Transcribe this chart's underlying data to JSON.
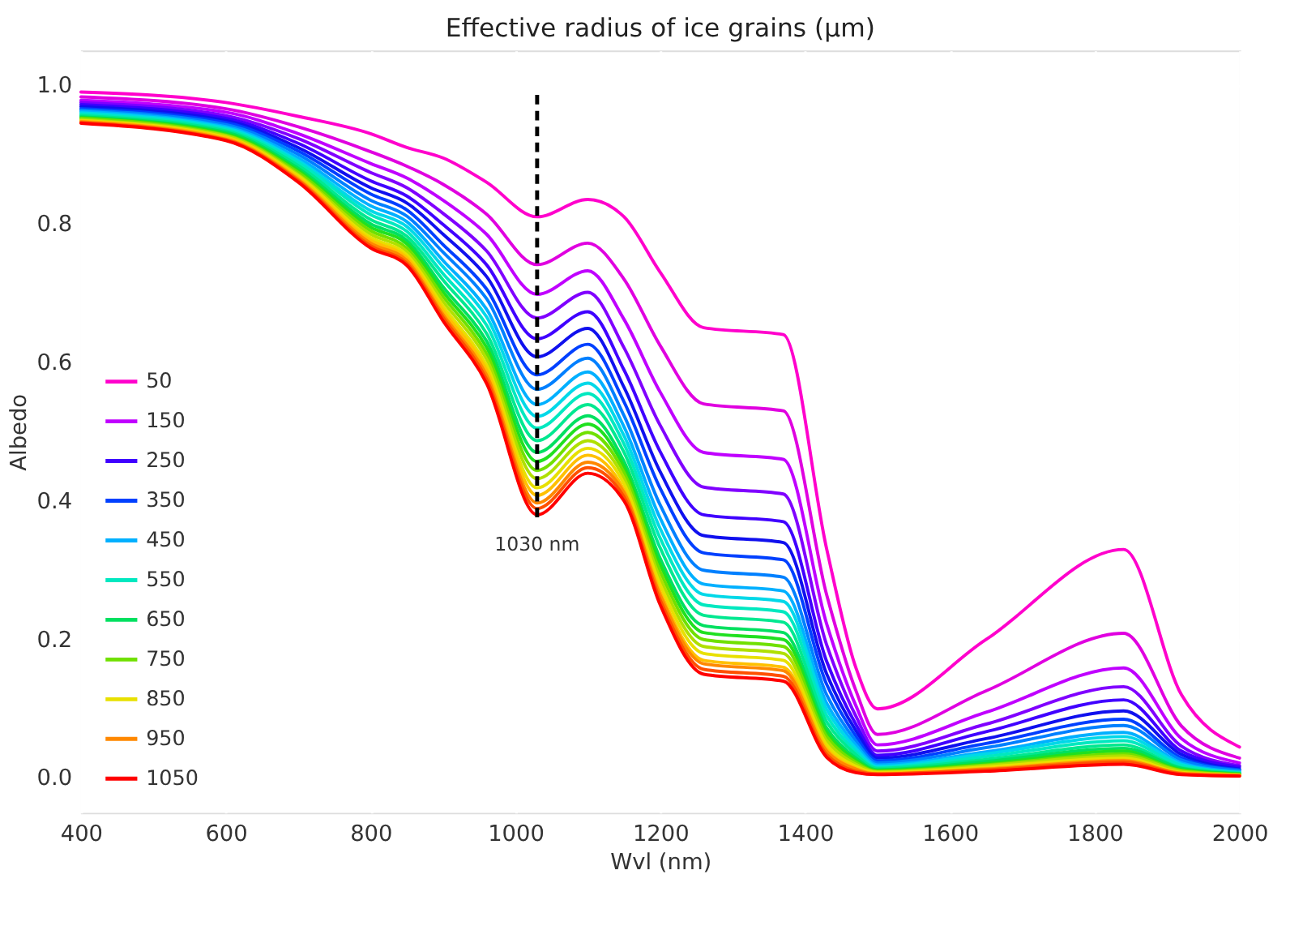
{
  "chart_data": {
    "type": "line",
    "title": "Effective radius of ice grains (µm)",
    "xlabel": "Wvl (nm)",
    "ylabel": "Albedo",
    "x": [
      400,
      600,
      700,
      800,
      850,
      900,
      960,
      1030,
      1100,
      1150,
      1200,
      1260,
      1370,
      1430,
      1470,
      1500,
      1650,
      1840,
      1920,
      2000
    ],
    "xlim": [
      400,
      2000
    ],
    "xticks": [
      400,
      600,
      800,
      1000,
      1200,
      1400,
      1600,
      1800,
      2000
    ],
    "ylim": [
      -0.05,
      1.05
    ],
    "yticks": [
      {
        "value": 0,
        "label": "0.0"
      },
      {
        "value": 0.2,
        "label": "0.2"
      },
      {
        "value": 0.4,
        "label": "0.4"
      },
      {
        "value": 0.6,
        "label": "0.6"
      },
      {
        "value": 0.8,
        "label": "0.8"
      },
      {
        "value": 1,
        "label": "1.0"
      }
    ],
    "grid": true,
    "legend": "bottom left",
    "line_style": "solid",
    "ref_lines": [
      {
        "axis": "x",
        "value": 1030,
        "label": "1030 nm",
        "color": "#000000",
        "line_style": "dashed"
      }
    ],
    "series": [
      {
        "name": "50",
        "color": "#ff00cc",
        "values": [
          0.99,
          0.975,
          0.955,
          0.93,
          0.91,
          0.895,
          0.86,
          0.81,
          0.835,
          0.81,
          0.73,
          0.65,
          0.64,
          0.33,
          0.16,
          0.1,
          0.2,
          0.33,
          0.12,
          0.045
        ]
      },
      {
        "color": "#e000e0",
        "values": [
          0.983,
          0.966,
          0.94,
          0.904,
          0.883,
          0.857,
          0.814,
          0.741,
          0.772,
          0.72,
          0.624,
          0.54,
          0.53,
          0.264,
          0.127,
          0.063,
          0.126,
          0.209,
          0.075,
          0.029
        ]
      },
      {
        "name": "150",
        "color": "#c000ff",
        "values": [
          0.978,
          0.961,
          0.93,
          0.887,
          0.866,
          0.834,
          0.785,
          0.698,
          0.732,
          0.662,
          0.557,
          0.47,
          0.46,
          0.222,
          0.105,
          0.048,
          0.095,
          0.159,
          0.057,
          0.022
        ]
      },
      {
        "color": "#8000ff",
        "values": [
          0.975,
          0.956,
          0.923,
          0.874,
          0.852,
          0.815,
          0.761,
          0.664,
          0.701,
          0.621,
          0.509,
          0.42,
          0.41,
          0.192,
          0.09,
          0.039,
          0.078,
          0.132,
          0.046,
          0.018
        ]
      },
      {
        "name": "250",
        "color": "#4000ff",
        "values": [
          0.972,
          0.952,
          0.916,
          0.862,
          0.84,
          0.799,
          0.741,
          0.634,
          0.673,
          0.589,
          0.471,
          0.38,
          0.37,
          0.168,
          0.078,
          0.033,
          0.067,
          0.113,
          0.039,
          0.016
        ]
      },
      {
        "color": "#1010ee",
        "values": [
          0.969,
          0.949,
          0.91,
          0.852,
          0.83,
          0.785,
          0.724,
          0.608,
          0.649,
          0.564,
          0.442,
          0.35,
          0.34,
          0.15,
          0.069,
          0.029,
          0.057,
          0.097,
          0.034,
          0.013
        ]
      },
      {
        "name": "350",
        "color": "#0040ff",
        "values": [
          0.966,
          0.946,
          0.905,
          0.843,
          0.82,
          0.77,
          0.706,
          0.582,
          0.626,
          0.543,
          0.418,
          0.325,
          0.315,
          0.135,
          0.061,
          0.025,
          0.05,
          0.085,
          0.029,
          0.012
        ]
      },
      {
        "color": "#0080ff",
        "values": [
          0.964,
          0.943,
          0.9,
          0.834,
          0.811,
          0.759,
          0.692,
          0.561,
          0.606,
          0.523,
          0.394,
          0.3,
          0.29,
          0.12,
          0.054,
          0.022,
          0.044,
          0.076,
          0.026,
          0.011
        ]
      },
      {
        "name": "450",
        "color": "#00b0ff",
        "values": [
          0.962,
          0.94,
          0.895,
          0.826,
          0.803,
          0.747,
          0.677,
          0.539,
          0.586,
          0.507,
          0.375,
          0.28,
          0.27,
          0.108,
          0.048,
          0.019,
          0.038,
          0.066,
          0.022,
          0.009
        ]
      },
      {
        "color": "#00d8e8",
        "values": [
          0.96,
          0.938,
          0.891,
          0.819,
          0.796,
          0.738,
          0.666,
          0.522,
          0.57,
          0.494,
          0.36,
          0.265,
          0.255,
          0.099,
          0.043,
          0.017,
          0.035,
          0.06,
          0.02,
          0.008
        ]
      },
      {
        "name": "550",
        "color": "#00e8c0",
        "values": [
          0.958,
          0.936,
          0.888,
          0.813,
          0.789,
          0.728,
          0.654,
          0.505,
          0.555,
          0.482,
          0.346,
          0.25,
          0.24,
          0.09,
          0.038,
          0.015,
          0.031,
          0.054,
          0.018,
          0.008
        ]
      },
      {
        "color": "#00e890",
        "values": [
          0.956,
          0.934,
          0.884,
          0.806,
          0.782,
          0.719,
          0.642,
          0.487,
          0.539,
          0.47,
          0.332,
          0.235,
          0.225,
          0.081,
          0.034,
          0.014,
          0.027,
          0.048,
          0.015,
          0.007
        ]
      },
      {
        "name": "650",
        "color": "#00e060",
        "values": [
          0.954,
          0.932,
          0.88,
          0.8,
          0.776,
          0.709,
          0.631,
          0.47,
          0.523,
          0.457,
          0.317,
          0.22,
          0.21,
          0.072,
          0.029,
          0.012,
          0.024,
          0.043,
          0.014,
          0.006
        ]
      },
      {
        "color": "#20e020",
        "values": [
          0.953,
          0.93,
          0.877,
          0.795,
          0.771,
          0.702,
          0.622,
          0.457,
          0.511,
          0.449,
          0.308,
          0.21,
          0.2,
          0.066,
          0.026,
          0.011,
          0.021,
          0.039,
          0.012,
          0.006
        ]
      },
      {
        "name": "750",
        "color": "#70e000",
        "values": [
          0.952,
          0.928,
          0.874,
          0.79,
          0.765,
          0.695,
          0.613,
          0.444,
          0.499,
          0.441,
          0.298,
          0.2,
          0.19,
          0.06,
          0.023,
          0.01,
          0.019,
          0.035,
          0.011,
          0.005
        ]
      },
      {
        "color": "#b0e000",
        "values": [
          0.95,
          0.927,
          0.871,
          0.785,
          0.76,
          0.688,
          0.605,
          0.432,
          0.487,
          0.433,
          0.288,
          0.19,
          0.18,
          0.054,
          0.02,
          0.009,
          0.018,
          0.032,
          0.01,
          0.005
        ]
      },
      {
        "name": "850",
        "color": "#e8e000",
        "values": [
          0.949,
          0.925,
          0.869,
          0.78,
          0.755,
          0.681,
          0.596,
          0.419,
          0.476,
          0.425,
          0.279,
          0.18,
          0.17,
          0.048,
          0.017,
          0.008,
          0.016,
          0.029,
          0.008,
          0.004
        ]
      },
      {
        "color": "#ffc000",
        "values": [
          0.948,
          0.924,
          0.866,
          0.776,
          0.751,
          0.675,
          0.589,
          0.408,
          0.466,
          0.416,
          0.269,
          0.17,
          0.16,
          0.042,
          0.014,
          0.007,
          0.014,
          0.026,
          0.007,
          0.004
        ]
      },
      {
        "name": "950",
        "color": "#ff8800",
        "values": [
          0.947,
          0.922,
          0.864,
          0.772,
          0.747,
          0.669,
          0.582,
          0.397,
          0.456,
          0.412,
          0.264,
          0.165,
          0.155,
          0.039,
          0.013,
          0.006,
          0.013,
          0.025,
          0.007,
          0.004
        ]
      },
      {
        "color": "#ff5000",
        "values": [
          0.946,
          0.921,
          0.862,
          0.768,
          0.743,
          0.665,
          0.576,
          0.389,
          0.448,
          0.406,
          0.257,
          0.157,
          0.147,
          0.034,
          0.01,
          0.006,
          0.012,
          0.023,
          0.006,
          0.003
        ]
      },
      {
        "name": "1050",
        "color": "#ff0000",
        "values": [
          0.945,
          0.92,
          0.86,
          0.765,
          0.74,
          0.66,
          0.57,
          0.38,
          0.44,
          0.4,
          0.25,
          0.15,
          0.14,
          0.03,
          0.008,
          0.005,
          0.01,
          0.02,
          0.005,
          0.003
        ]
      }
    ]
  }
}
